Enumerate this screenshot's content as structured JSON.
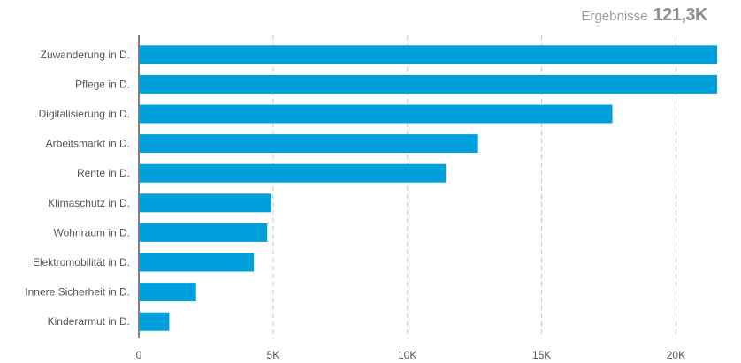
{
  "header": {
    "label": "Ergebnisse",
    "value": "121,3K"
  },
  "chart_data": {
    "type": "bar",
    "orientation": "horizontal",
    "categories": [
      "Zuwanderung in D.",
      "Pflege in D.",
      "Digitalisierung in D.",
      "Arbeitsmarkt in D.",
      "Rente in D.",
      "Klimaschutz in D.",
      "Wohnraum in D.",
      "Elektromobilität in D.",
      "Innere Sicherheit in D.",
      "Kinderarmut in D."
    ],
    "values": [
      21500,
      21500,
      17600,
      12600,
      11400,
      4900,
      4750,
      4250,
      2100,
      1100
    ],
    "x_ticks": [
      0,
      5000,
      10000,
      15000,
      20000
    ],
    "x_tick_labels": [
      "0",
      "5K",
      "10K",
      "15K",
      "20K"
    ],
    "xlim": [
      0,
      21500
    ],
    "grid": "vertical dashed",
    "bar_color": "#00a0dc",
    "title": "",
    "xlabel": "",
    "ylabel": ""
  }
}
